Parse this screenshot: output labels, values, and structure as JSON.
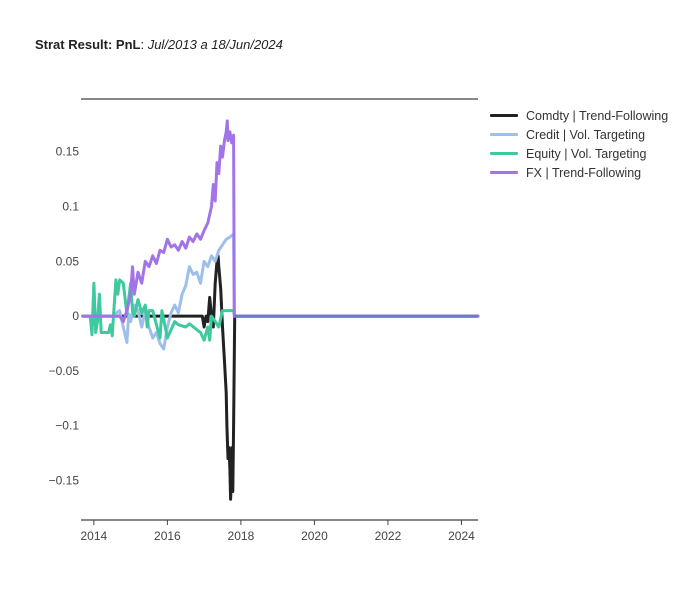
{
  "title": {
    "bold": "Strat Result: PnL",
    "sep": ": ",
    "italic": "Jul/2013 a 18/Jun/2024"
  },
  "chart_data": {
    "type": "line",
    "title": "Strat Result: PnL: Jul/2013 a 18/Jun/2024",
    "xlim": [
      2013.65,
      2024.45
    ],
    "ylim": [
      -0.186,
      0.198
    ],
    "x_ticks": [
      2014,
      2016,
      2018,
      2020,
      2022,
      2024
    ],
    "x_tick_labels": [
      "2014",
      "2016",
      "2018",
      "2020",
      "2022",
      "2024"
    ],
    "y_ticks": [
      -0.15,
      -0.1,
      -0.05,
      0,
      0.05,
      0.1,
      0.15
    ],
    "y_tick_labels": [
      "−0.15",
      "−0.1",
      "−0.05",
      "0",
      "0.05",
      "0.1",
      "0.15"
    ],
    "grid": false,
    "legend": "top-right outside",
    "series": [
      {
        "name": "Comdty | Trend-Following",
        "color": "#222222",
        "x": [
          2013.7,
          2016.95,
          2017.0,
          2017.05,
          2017.1,
          2017.15,
          2017.2,
          2017.25,
          2017.3,
          2017.35,
          2017.38,
          2017.4,
          2017.45,
          2017.5,
          2017.55,
          2017.6,
          2017.62,
          2017.65,
          2017.68,
          2017.7,
          2017.72,
          2017.74,
          2017.76,
          2017.78,
          2017.8,
          2017.83,
          2024.45
        ],
        "y": [
          0.0,
          0.0,
          -0.01,
          0.0,
          -0.005,
          0.017,
          0.0,
          -0.01,
          0.03,
          0.05,
          0.055,
          0.045,
          0.025,
          -0.01,
          -0.04,
          -0.07,
          -0.1,
          -0.13,
          -0.12,
          -0.14,
          -0.167,
          -0.15,
          -0.12,
          -0.16,
          -0.1,
          0.0,
          0.0
        ]
      },
      {
        "name": "Credit | Vol. Targeting",
        "color": "#9dbfeb",
        "x": [
          2013.7,
          2014.5,
          2014.7,
          2014.8,
          2014.9,
          2014.95,
          2015.0,
          2015.1,
          2015.2,
          2015.3,
          2015.4,
          2015.5,
          2015.6,
          2015.7,
          2015.8,
          2015.9,
          2016.0,
          2016.1,
          2016.2,
          2016.3,
          2016.4,
          2016.5,
          2016.6,
          2016.7,
          2016.8,
          2016.9,
          2017.0,
          2017.1,
          2017.2,
          2017.3,
          2017.4,
          2017.5,
          2017.6,
          2017.7,
          2017.8,
          2017.82,
          2024.45
        ],
        "y": [
          0.0,
          0.0,
          0.005,
          -0.01,
          -0.024,
          0.002,
          -0.005,
          0.01,
          0.005,
          -0.01,
          0.005,
          -0.01,
          -0.02,
          -0.015,
          -0.025,
          -0.03,
          -0.01,
          0.003,
          0.01,
          0.003,
          0.02,
          0.028,
          0.045,
          0.038,
          0.04,
          0.03,
          0.05,
          0.045,
          0.055,
          0.05,
          0.06,
          0.065,
          0.07,
          0.072,
          0.075,
          0.0,
          0.0
        ]
      },
      {
        "name": "Equity | Vol. Targeting",
        "color": "#3ec99f",
        "x": [
          2013.7,
          2013.9,
          2013.95,
          2014.0,
          2014.05,
          2014.1,
          2014.15,
          2014.2,
          2014.4,
          2014.45,
          2014.5,
          2014.6,
          2014.65,
          2014.7,
          2014.8,
          2014.9,
          2015.0,
          2015.05,
          2015.1,
          2015.2,
          2015.3,
          2015.4,
          2015.45,
          2015.5,
          2015.6,
          2015.8,
          2015.85,
          2016.0,
          2016.2,
          2016.3,
          2016.5,
          2016.6,
          2016.9,
          2017.0,
          2017.1,
          2017.15,
          2017.2,
          2017.3,
          2017.4,
          2017.5,
          2017.8,
          2017.83,
          2024.45
        ],
        "y": [
          0.0,
          0.0,
          -0.017,
          0.03,
          -0.015,
          -0.005,
          0.02,
          -0.015,
          -0.015,
          -0.008,
          -0.018,
          0.033,
          0.02,
          0.033,
          0.03,
          0.002,
          0.03,
          0.005,
          0.0,
          0.015,
          0.003,
          0.01,
          -0.01,
          0.005,
          0.005,
          -0.02,
          0.005,
          -0.02,
          -0.005,
          -0.008,
          -0.01,
          -0.007,
          -0.015,
          -0.022,
          -0.01,
          -0.022,
          0.0,
          -0.005,
          -0.01,
          0.005,
          0.005,
          0.0,
          0.0
        ]
      },
      {
        "name": "FX | Trend-Following",
        "color": "#a274e8",
        "x": [
          2013.7,
          2014.7,
          2014.8,
          2014.9,
          2015.0,
          2015.05,
          2015.1,
          2015.2,
          2015.3,
          2015.4,
          2015.5,
          2015.6,
          2015.7,
          2015.8,
          2015.9,
          2016.0,
          2016.1,
          2016.2,
          2016.3,
          2016.4,
          2016.5,
          2016.6,
          2016.7,
          2016.8,
          2016.9,
          2017.0,
          2017.1,
          2017.2,
          2017.25,
          2017.3,
          2017.35,
          2017.4,
          2017.45,
          2017.5,
          2017.55,
          2017.6,
          2017.63,
          2017.65,
          2017.7,
          2017.75,
          2017.8,
          2017.82,
          2024.45
        ],
        "y": [
          0.0,
          0.0,
          -0.005,
          0.005,
          0.02,
          0.045,
          0.02,
          0.04,
          0.03,
          0.05,
          0.045,
          0.055,
          0.048,
          0.06,
          0.058,
          0.07,
          0.063,
          0.065,
          0.06,
          0.068,
          0.062,
          0.072,
          0.068,
          0.075,
          0.07,
          0.078,
          0.085,
          0.1,
          0.12,
          0.105,
          0.14,
          0.13,
          0.155,
          0.145,
          0.16,
          0.168,
          0.178,
          0.16,
          0.168,
          0.158,
          0.165,
          0.0,
          0.0
        ]
      }
    ]
  }
}
